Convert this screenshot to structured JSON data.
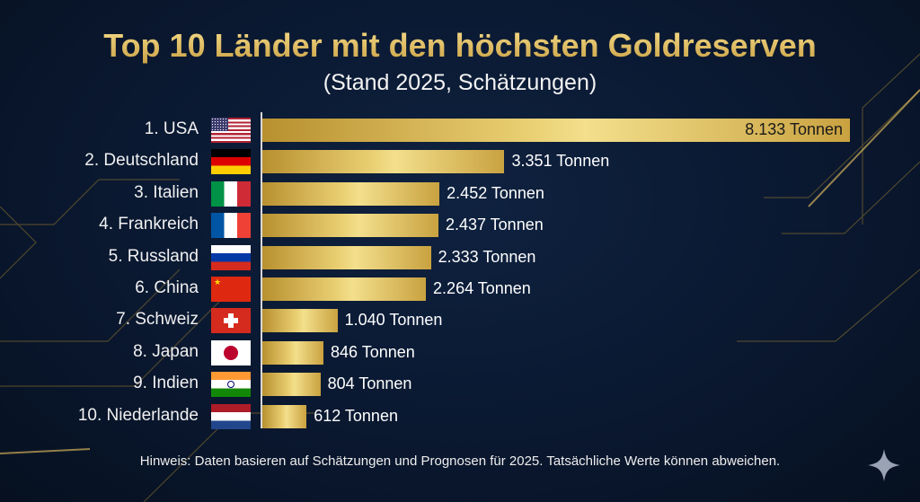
{
  "chart_data": {
    "type": "bar",
    "orientation": "horizontal",
    "title": "Top 10 Länder mit den höchsten Goldreserven",
    "subtitle": "(Stand 2025, Schätzungen)",
    "categories": [
      "1. USA",
      "2. Deutschland",
      "3. Italien",
      "4. Frankreich",
      "5. Russland",
      "6. China",
      "7. Schweiz",
      "8. Japan",
      "9. Indien",
      "10. Niederlande"
    ],
    "flags": [
      "us",
      "de",
      "it",
      "fr",
      "ru",
      "cn",
      "ch",
      "jp",
      "in",
      "nl"
    ],
    "values": [
      8133,
      3351,
      2452,
      2437,
      2333,
      2264,
      1040,
      846,
      804,
      612
    ],
    "value_labels": [
      "8.133 Tonnen",
      "3.351 Tonnen",
      "2.452 Tonnen",
      "2.437 Tonnen",
      "2.333 Tonnen",
      "2.264 Tonnen",
      "1.040 Tonnen",
      "846 Tonnen",
      "804 Tonnen",
      "612 Tonnen"
    ],
    "unit": "Tonnen",
    "xlim": [
      0,
      8133
    ],
    "grid": false,
    "legend": "none",
    "bar_color": "#d9b75a"
  },
  "note": "Hinweis: Daten basieren auf Schätzungen und Prognosen für 2025. Tatsächliche Werte können abweichen.",
  "icons": {
    "corner": "sparkle-icon"
  }
}
